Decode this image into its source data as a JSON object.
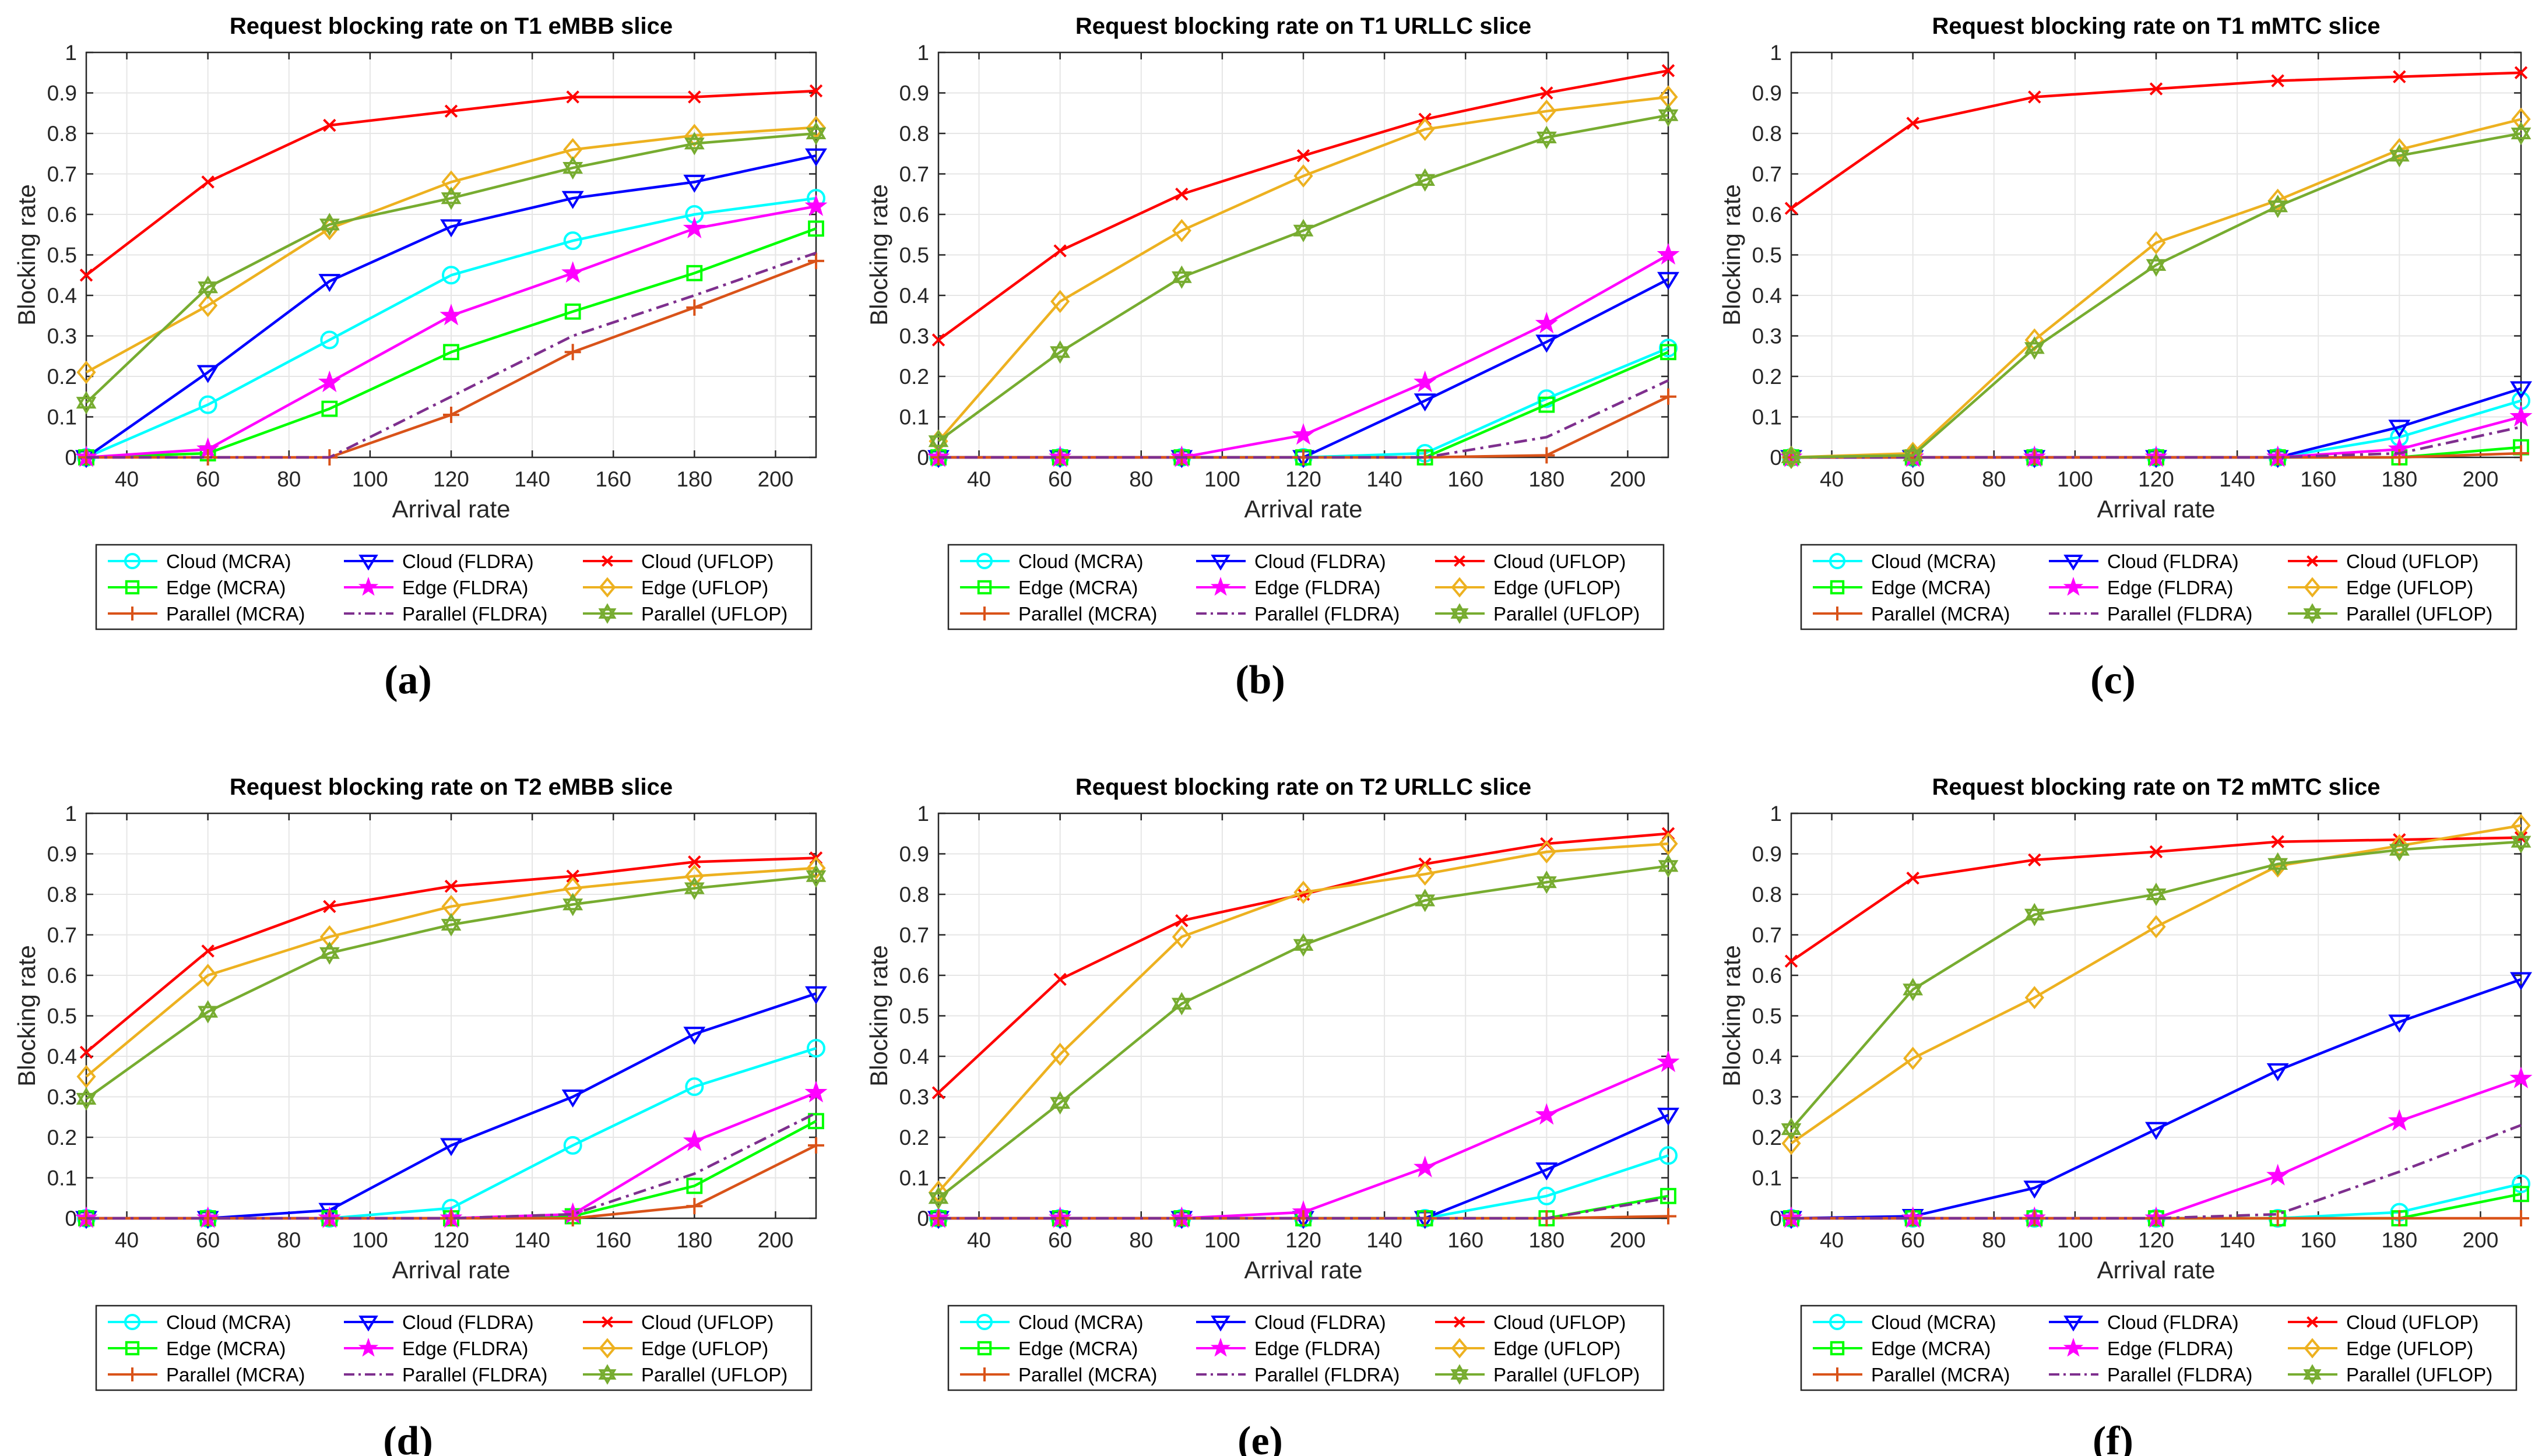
{
  "colors": {
    "cloud_mcra": "#00ffff",
    "cloud_fldra": "#0000ff",
    "cloud_uflop": "#ff0000",
    "edge_mcra": "#00ff00",
    "edge_fldra": "#ff00ff",
    "edge_uflop": "#edb120",
    "par_mcra": "#d95319",
    "par_fldra": "#7e2f8e",
    "par_uflop": "#77ac30"
  },
  "legend": {
    "cloud_mcra": "Cloud (MCRA)",
    "cloud_fldra": "Cloud (FLDRA)",
    "cloud_uflop": "Cloud (UFLOP)",
    "edge_mcra": "Edge (MCRA)",
    "edge_fldra": "Edge (FLDRA)",
    "edge_uflop": "Edge (UFLOP)",
    "par_mcra": "Parallel (MCRA)",
    "par_fldra": "Parallel (FLDRA)",
    "par_uflop": "Parallel (UFLOP)"
  },
  "panels": [
    "(a)",
    "(b)",
    "(c)",
    "(d)",
    "(e)",
    "(f)"
  ],
  "chart_data": [
    {
      "type": "line",
      "title": "Request blocking rate on T1 eMBB slice",
      "xlabel": "Arrival rate",
      "ylabel": "Blocking rate",
      "xlim": [
        30,
        210
      ],
      "ylim": [
        0,
        1
      ],
      "xticks": [
        40,
        60,
        80,
        100,
        120,
        140,
        160,
        180,
        200
      ],
      "yticks": [
        0,
        0.1,
        0.2,
        0.3,
        0.4,
        0.5,
        0.6,
        0.7,
        0.8,
        0.9,
        1
      ],
      "x": [
        30,
        60,
        90,
        120,
        150,
        180,
        210
      ],
      "series": [
        {
          "key": "cloud_mcra",
          "values": [
            0,
            0.13,
            0.29,
            0.45,
            0.535,
            0.6,
            0.64
          ]
        },
        {
          "key": "cloud_fldra",
          "values": [
            0,
            0.21,
            0.435,
            0.57,
            0.64,
            0.68,
            0.745
          ]
        },
        {
          "key": "cloud_uflop",
          "values": [
            0.45,
            0.68,
            0.82,
            0.855,
            0.89,
            0.89,
            0.905
          ]
        },
        {
          "key": "edge_mcra",
          "values": [
            0,
            0.01,
            0.12,
            0.26,
            0.36,
            0.455,
            0.565
          ]
        },
        {
          "key": "edge_fldra",
          "values": [
            0,
            0.02,
            0.185,
            0.35,
            0.455,
            0.565,
            0.62
          ]
        },
        {
          "key": "edge_uflop",
          "values": [
            0.21,
            0.375,
            0.565,
            0.68,
            0.76,
            0.795,
            0.815
          ]
        },
        {
          "key": "par_mcra",
          "values": [
            0,
            0,
            0,
            0.105,
            0.26,
            0.37,
            0.485
          ]
        },
        {
          "key": "par_fldra",
          "values": [
            0,
            0,
            0,
            0.15,
            0.3,
            0.4,
            0.505
          ]
        },
        {
          "key": "par_uflop",
          "values": [
            0.135,
            0.42,
            0.575,
            0.64,
            0.715,
            0.775,
            0.8
          ]
        }
      ]
    },
    {
      "type": "line",
      "title": "Request blocking rate on T1 URLLC slice",
      "xlabel": "Arrival rate",
      "ylabel": "Blocking rate",
      "xlim": [
        30,
        210
      ],
      "ylim": [
        0,
        1
      ],
      "xticks": [
        40,
        60,
        80,
        100,
        120,
        140,
        160,
        180,
        200
      ],
      "yticks": [
        0,
        0.1,
        0.2,
        0.3,
        0.4,
        0.5,
        0.6,
        0.7,
        0.8,
        0.9,
        1
      ],
      "x": [
        30,
        60,
        90,
        120,
        150,
        180,
        210
      ],
      "series": [
        {
          "key": "cloud_mcra",
          "values": [
            0,
            0,
            0,
            0,
            0.01,
            0.145,
            0.27
          ]
        },
        {
          "key": "cloud_fldra",
          "values": [
            0,
            0,
            0,
            0,
            0.14,
            0.285,
            0.44
          ]
        },
        {
          "key": "cloud_uflop",
          "values": [
            0.29,
            0.51,
            0.65,
            0.745,
            0.835,
            0.9,
            0.955
          ]
        },
        {
          "key": "edge_mcra",
          "values": [
            0,
            0,
            0,
            0,
            0,
            0.13,
            0.26
          ]
        },
        {
          "key": "edge_fldra",
          "values": [
            0,
            0,
            0,
            0.055,
            0.185,
            0.33,
            0.5
          ]
        },
        {
          "key": "edge_uflop",
          "values": [
            0.04,
            0.385,
            0.56,
            0.695,
            0.81,
            0.855,
            0.89
          ]
        },
        {
          "key": "par_mcra",
          "values": [
            0,
            0,
            0,
            0,
            0,
            0.005,
            0.15
          ]
        },
        {
          "key": "par_fldra",
          "values": [
            0,
            0,
            0,
            0,
            0,
            0.05,
            0.19
          ]
        },
        {
          "key": "par_uflop",
          "values": [
            0.04,
            0.26,
            0.445,
            0.56,
            0.685,
            0.79,
            0.845
          ]
        }
      ]
    },
    {
      "type": "line",
      "title": "Request blocking rate on T1 mMTC slice",
      "xlabel": "Arrival rate",
      "ylabel": "Blocking rate",
      "xlim": [
        30,
        210
      ],
      "ylim": [
        0,
        1
      ],
      "xticks": [
        40,
        60,
        80,
        100,
        120,
        140,
        160,
        180,
        200
      ],
      "yticks": [
        0,
        0.1,
        0.2,
        0.3,
        0.4,
        0.5,
        0.6,
        0.7,
        0.8,
        0.9,
        1
      ],
      "x": [
        30,
        60,
        90,
        120,
        150,
        180,
        210
      ],
      "series": [
        {
          "key": "cloud_mcra",
          "values": [
            0,
            0,
            0,
            0,
            0,
            0.05,
            0.14
          ]
        },
        {
          "key": "cloud_fldra",
          "values": [
            0,
            0,
            0,
            0,
            0,
            0.075,
            0.17
          ]
        },
        {
          "key": "cloud_uflop",
          "values": [
            0.615,
            0.825,
            0.89,
            0.91,
            0.93,
            0.94,
            0.95
          ]
        },
        {
          "key": "edge_mcra",
          "values": [
            0,
            0,
            0,
            0,
            0,
            0,
            0.025
          ]
        },
        {
          "key": "edge_fldra",
          "values": [
            0,
            0,
            0,
            0,
            0,
            0.02,
            0.1
          ]
        },
        {
          "key": "edge_uflop",
          "values": [
            0,
            0.01,
            0.29,
            0.53,
            0.635,
            0.76,
            0.835
          ]
        },
        {
          "key": "par_mcra",
          "values": [
            0,
            0,
            0,
            0,
            0,
            0,
            0.01
          ]
        },
        {
          "key": "par_fldra",
          "values": [
            0,
            0,
            0,
            0,
            0,
            0.01,
            0.075
          ]
        },
        {
          "key": "par_uflop",
          "values": [
            0,
            0.005,
            0.27,
            0.475,
            0.62,
            0.745,
            0.8
          ]
        }
      ]
    },
    {
      "type": "line",
      "title": "Request blocking rate on T2 eMBB slice",
      "xlabel": "Arrival rate",
      "ylabel": "Blocking rate",
      "xlim": [
        30,
        210
      ],
      "ylim": [
        0,
        1
      ],
      "xticks": [
        40,
        60,
        80,
        100,
        120,
        140,
        160,
        180,
        200
      ],
      "yticks": [
        0,
        0.1,
        0.2,
        0.3,
        0.4,
        0.5,
        0.6,
        0.7,
        0.8,
        0.9,
        1
      ],
      "x": [
        30,
        60,
        90,
        120,
        150,
        180,
        210
      ],
      "series": [
        {
          "key": "cloud_mcra",
          "values": [
            0,
            0,
            0,
            0.025,
            0.18,
            0.325,
            0.42
          ]
        },
        {
          "key": "cloud_fldra",
          "values": [
            0,
            0,
            0.02,
            0.18,
            0.3,
            0.455,
            0.555
          ]
        },
        {
          "key": "cloud_uflop",
          "values": [
            0.41,
            0.66,
            0.77,
            0.82,
            0.845,
            0.88,
            0.89
          ]
        },
        {
          "key": "edge_mcra",
          "values": [
            0,
            0,
            0,
            0,
            0.005,
            0.08,
            0.24
          ]
        },
        {
          "key": "edge_fldra",
          "values": [
            0,
            0,
            0,
            0,
            0.01,
            0.19,
            0.31
          ]
        },
        {
          "key": "edge_uflop",
          "values": [
            0.35,
            0.6,
            0.695,
            0.77,
            0.815,
            0.845,
            0.865
          ]
        },
        {
          "key": "par_mcra",
          "values": [
            0,
            0,
            0,
            0,
            0,
            0.03,
            0.18
          ]
        },
        {
          "key": "par_fldra",
          "values": [
            0,
            0,
            0,
            0,
            0.01,
            0.11,
            0.26
          ]
        },
        {
          "key": "par_uflop",
          "values": [
            0.295,
            0.51,
            0.655,
            0.725,
            0.775,
            0.815,
            0.845
          ]
        }
      ]
    },
    {
      "type": "line",
      "title": "Request blocking rate on T2 URLLC slice",
      "xlabel": "Arrival rate",
      "ylabel": "Blocking rate",
      "xlim": [
        30,
        210
      ],
      "ylim": [
        0,
        1
      ],
      "xticks": [
        40,
        60,
        80,
        100,
        120,
        140,
        160,
        180,
        200
      ],
      "yticks": [
        0,
        0.1,
        0.2,
        0.3,
        0.4,
        0.5,
        0.6,
        0.7,
        0.8,
        0.9,
        1
      ],
      "x": [
        30,
        60,
        90,
        120,
        150,
        180,
        210
      ],
      "series": [
        {
          "key": "cloud_mcra",
          "values": [
            0,
            0,
            0,
            0,
            0,
            0.055,
            0.155
          ]
        },
        {
          "key": "cloud_fldra",
          "values": [
            0,
            0,
            0,
            0,
            0,
            0.12,
            0.255
          ]
        },
        {
          "key": "cloud_uflop",
          "values": [
            0.31,
            0.59,
            0.735,
            0.8,
            0.875,
            0.925,
            0.95
          ]
        },
        {
          "key": "edge_mcra",
          "values": [
            0,
            0,
            0,
            0,
            0,
            0,
            0.055
          ]
        },
        {
          "key": "edge_fldra",
          "values": [
            0,
            0,
            0,
            0.015,
            0.125,
            0.255,
            0.385
          ]
        },
        {
          "key": "edge_uflop",
          "values": [
            0.065,
            0.405,
            0.695,
            0.805,
            0.85,
            0.905,
            0.925
          ]
        },
        {
          "key": "par_mcra",
          "values": [
            0,
            0,
            0,
            0,
            0,
            0,
            0.005
          ]
        },
        {
          "key": "par_fldra",
          "values": [
            0,
            0,
            0,
            0,
            0,
            0,
            0.05
          ]
        },
        {
          "key": "par_uflop",
          "values": [
            0.05,
            0.285,
            0.53,
            0.675,
            0.785,
            0.83,
            0.87
          ]
        }
      ]
    },
    {
      "type": "line",
      "title": "Request blocking rate on T2 mMTC slice",
      "xlabel": "Arrival rate",
      "ylabel": "Blocking rate",
      "xlim": [
        30,
        210
      ],
      "ylim": [
        0,
        1
      ],
      "xticks": [
        40,
        60,
        80,
        100,
        120,
        140,
        160,
        180,
        200
      ],
      "yticks": [
        0,
        0.1,
        0.2,
        0.3,
        0.4,
        0.5,
        0.6,
        0.7,
        0.8,
        0.9,
        1
      ],
      "x": [
        30,
        60,
        90,
        120,
        150,
        180,
        210
      ],
      "series": [
        {
          "key": "cloud_mcra",
          "values": [
            0,
            0,
            0,
            0,
            0,
            0.015,
            0.085
          ]
        },
        {
          "key": "cloud_fldra",
          "values": [
            0,
            0.005,
            0.075,
            0.22,
            0.365,
            0.485,
            0.59
          ]
        },
        {
          "key": "cloud_uflop",
          "values": [
            0.635,
            0.84,
            0.885,
            0.905,
            0.93,
            0.935,
            0.94
          ]
        },
        {
          "key": "edge_mcra",
          "values": [
            0,
            0,
            0,
            0,
            0,
            0,
            0.06
          ]
        },
        {
          "key": "edge_fldra",
          "values": [
            0,
            0,
            0,
            0,
            0.105,
            0.24,
            0.345
          ]
        },
        {
          "key": "edge_uflop",
          "values": [
            0.185,
            0.395,
            0.545,
            0.72,
            0.87,
            0.92,
            0.97
          ]
        },
        {
          "key": "par_mcra",
          "values": [
            0,
            0,
            0,
            0,
            0,
            0,
            0
          ]
        },
        {
          "key": "par_fldra",
          "values": [
            0,
            0,
            0,
            0,
            0.01,
            0.115,
            0.23
          ]
        },
        {
          "key": "par_uflop",
          "values": [
            0.22,
            0.565,
            0.75,
            0.8,
            0.875,
            0.91,
            0.93
          ]
        }
      ]
    }
  ]
}
